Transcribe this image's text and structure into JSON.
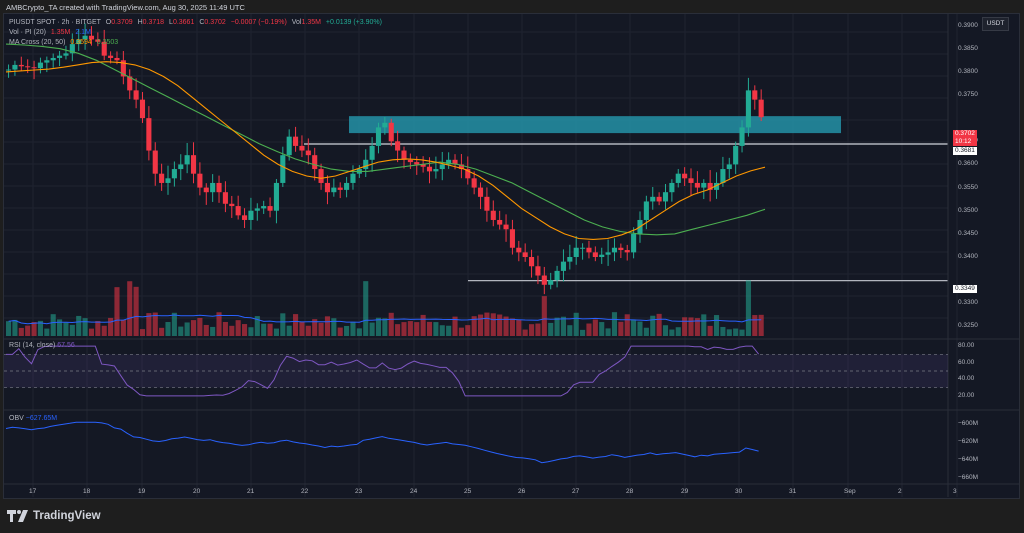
{
  "header": {
    "attribution": "AMBCrypto_TA created with TradingView.com, Aug 30, 2025 11:49 UTC"
  },
  "legend": {
    "symbol": "PIUSDT SPOT · 2h · BITGET",
    "o_label": "O",
    "o": "0.3709",
    "h_label": "H",
    "h": "0.3718",
    "l_label": "L",
    "l": "0.3661",
    "c_label": "C",
    "c": "0.3702",
    "change": "−0.0007 (−0.19%)",
    "vol_label": "Vol",
    "vol": "1.35M",
    "vol_change": "+0.0139 (+3.90%)",
    "vol_pi_label": "Vol · PI (20)",
    "vol_pi_1": "1.35M",
    "vol_pi_2": "2.1M",
    "ma_label": "MA Cross (20, 50)",
    "ma_20": "0.3594",
    "ma_50": "0.3503"
  },
  "price_axis": {
    "currency": "USDT",
    "ticks": [
      "0.3900",
      "0.3850",
      "0.3800",
      "0.3750",
      "0.3650",
      "0.3600",
      "0.3550",
      "0.3500",
      "0.3450",
      "0.3400",
      "0.3300",
      "0.3250"
    ],
    "last_price": "0.3702",
    "countdown": "10:12",
    "resistance_label": "0.3681",
    "support_label": "0.3349"
  },
  "rsi": {
    "title": "RSI (14, close)",
    "value": "67.56",
    "ticks": [
      "80.00",
      "60.00",
      "40.00",
      "20.00"
    ]
  },
  "obv": {
    "title": "OBV",
    "value": "−627.65M",
    "ticks": [
      "−600M",
      "−620M",
      "−640M",
      "−660M"
    ]
  },
  "time_axis": {
    "ticks": [
      "17",
      "18",
      "19",
      "20",
      "21",
      "22",
      "23",
      "24",
      "25",
      "26",
      "27",
      "28",
      "29",
      "30",
      "31",
      "Sep",
      "2",
      "3"
    ]
  },
  "brand": {
    "name": "TradingView"
  },
  "colors": {
    "up": "#22ab94",
    "down": "#f23645",
    "ma20": "#ff9800",
    "ma50": "#4caf50",
    "zone": "#26a2b8",
    "rsi": "#7e57c2",
    "obv": "#2962ff",
    "vol_ma": "#2962ff"
  },
  "chart_data": {
    "type": "candlestick",
    "title": "PIUSDT SPOT · 2h · BITGET",
    "ylim": [
      0.3225,
      0.3925
    ],
    "resistance_zone": [
      0.3672,
      0.37
    ],
    "support_line": 0.3349,
    "closes": [
      0.3805,
      0.3815,
      0.3812,
      0.381,
      0.3808,
      0.382,
      0.3825,
      0.383,
      0.3835,
      0.384,
      0.386,
      0.387,
      0.3878,
      0.387,
      0.3865,
      0.3835,
      0.383,
      0.3825,
      0.379,
      0.376,
      0.374,
      0.37,
      0.363,
      0.358,
      0.356,
      0.357,
      0.359,
      0.36,
      0.362,
      0.358,
      0.355,
      0.354,
      0.356,
      0.354,
      0.3515,
      0.351,
      0.349,
      0.348,
      0.35,
      0.3505,
      0.351,
      0.35,
      0.356,
      0.362,
      0.366,
      0.364,
      0.363,
      0.362,
      0.359,
      0.356,
      0.354,
      0.355,
      0.3545,
      0.356,
      0.358,
      0.359,
      0.361,
      0.364,
      0.368,
      0.369,
      0.365,
      0.363,
      0.361,
      0.3605,
      0.36,
      0.3595,
      0.3585,
      0.359,
      0.36,
      0.361,
      0.36,
      0.359,
      0.357,
      0.355,
      0.353,
      0.35,
      0.348,
      0.347,
      0.346,
      0.342,
      0.341,
      0.34,
      0.338,
      0.336,
      0.334,
      0.335,
      0.337,
      0.339,
      0.34,
      0.342,
      0.342,
      0.341,
      0.34,
      0.3405,
      0.341,
      0.342,
      0.3415,
      0.341,
      0.345,
      0.348,
      0.352,
      0.353,
      0.352,
      0.354,
      0.356,
      0.358,
      0.357,
      0.356,
      0.355,
      0.356,
      0.3545,
      0.356,
      0.359,
      0.36,
      0.364,
      0.368,
      0.376,
      0.374,
      0.3702
    ],
    "ma20": [
      0.38,
      0.3802,
      0.3804,
      0.3806,
      0.381,
      0.3815,
      0.382,
      0.3822,
      0.382,
      0.3815,
      0.3805,
      0.379,
      0.377,
      0.3745,
      0.372,
      0.3695,
      0.367,
      0.3645,
      0.362,
      0.36,
      0.3585,
      0.3575,
      0.357,
      0.3575,
      0.3585,
      0.3595,
      0.3605,
      0.361,
      0.3612,
      0.361,
      0.3605,
      0.3598,
      0.359,
      0.3575,
      0.3555,
      0.353,
      0.3505,
      0.3485,
      0.3465,
      0.345,
      0.344,
      0.3438,
      0.344,
      0.3448,
      0.346,
      0.348,
      0.35,
      0.352,
      0.3535,
      0.3545,
      0.356,
      0.3575,
      0.3586,
      0.3594
    ],
    "ma50": [
      0.386,
      0.3858,
      0.3855,
      0.385,
      0.384,
      0.3825,
      0.3805,
      0.3785,
      0.3765,
      0.3745,
      0.3725,
      0.3705,
      0.3685,
      0.3665,
      0.3645,
      0.3628,
      0.3612,
      0.36,
      0.359,
      0.3585,
      0.3585,
      0.359,
      0.3595,
      0.36,
      0.3605,
      0.36,
      0.359,
      0.3575,
      0.356,
      0.354,
      0.352,
      0.35,
      0.348,
      0.3465,
      0.3455,
      0.345,
      0.3448,
      0.345,
      0.346,
      0.347,
      0.348,
      0.349,
      0.3503
    ]
  }
}
